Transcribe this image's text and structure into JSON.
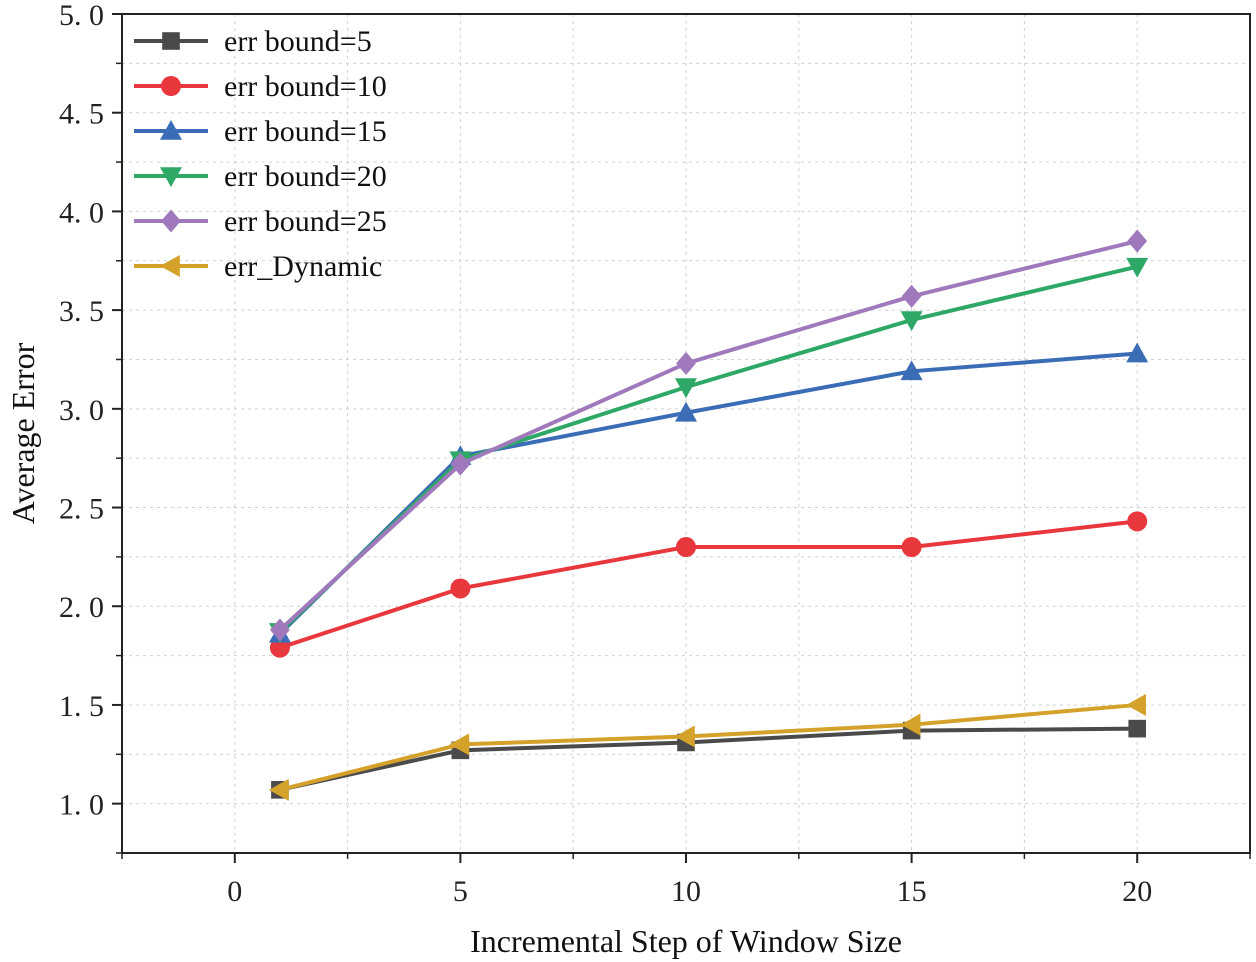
{
  "chart_data": {
    "type": "line",
    "title": "",
    "xlabel": "Incremental Step of Window Size",
    "ylabel": "Average Error",
    "xlim": [
      -2.5,
      22.5
    ],
    "ylim": [
      0.75,
      5.0
    ],
    "x_ticks": [
      0,
      5,
      10,
      15,
      20
    ],
    "x_tick_labels": [
      "0",
      "5",
      "10",
      "15",
      "20"
    ],
    "y_ticks": [
      1.0,
      1.5,
      2.0,
      2.5,
      3.0,
      3.5,
      4.0,
      4.5,
      5.0
    ],
    "y_tick_labels": [
      "1. 0",
      "1. 5",
      "2. 0",
      "2. 5",
      "3. 0",
      "3. 5",
      "4. 0",
      "4. 5",
      "5. 0"
    ],
    "grid": true,
    "legend_position": "top-left",
    "x": [
      1,
      5,
      10,
      15,
      20
    ],
    "series": [
      {
        "name": "err bound=5",
        "marker": "square",
        "color": "#4a4a4a",
        "values": [
          1.07,
          1.27,
          1.31,
          1.37,
          1.38
        ]
      },
      {
        "name": "err bound=10",
        "marker": "circle",
        "color": "#e8373d",
        "values": [
          1.79,
          2.09,
          2.3,
          2.3,
          2.43
        ]
      },
      {
        "name": "err bound=15",
        "marker": "triangle-up",
        "color": "#3a6db5",
        "values": [
          1.86,
          2.76,
          2.98,
          3.19,
          3.28
        ]
      },
      {
        "name": "err bound=20",
        "marker": "triangle-down",
        "color": "#2ea866",
        "values": [
          1.87,
          2.74,
          3.11,
          3.45,
          3.72
        ]
      },
      {
        "name": "err bound=25",
        "marker": "diamond",
        "color": "#a078bc",
        "values": [
          1.88,
          2.72,
          3.23,
          3.57,
          3.85
        ]
      },
      {
        "name": "err_Dynamic",
        "marker": "triangle-left",
        "color": "#d4a12b",
        "values": [
          1.07,
          1.3,
          1.34,
          1.4,
          1.5
        ]
      }
    ]
  }
}
